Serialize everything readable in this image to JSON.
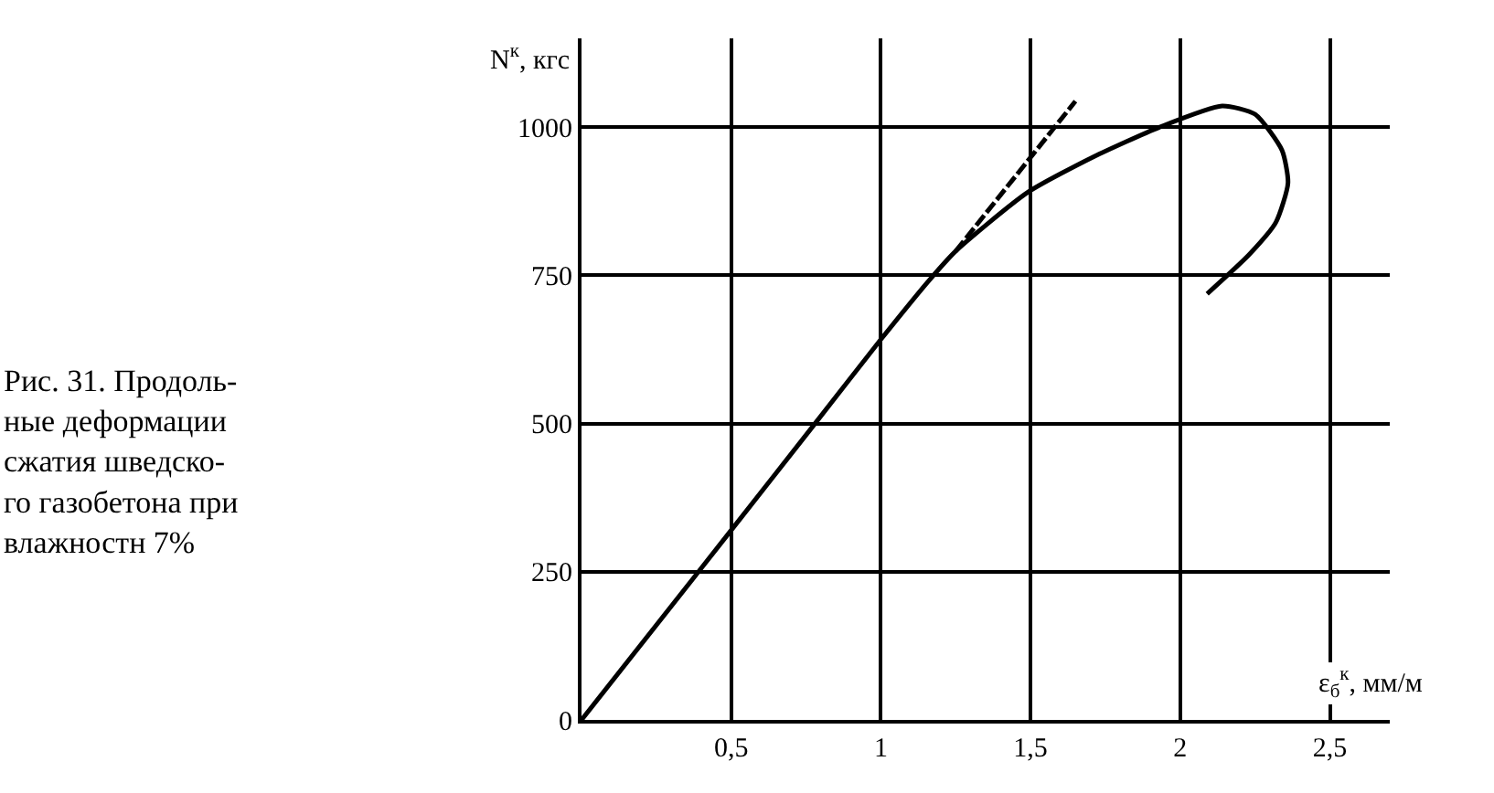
{
  "chart_data": {
    "type": "line",
    "xlabel": "ε$_{б}$$^{к}$, мм/м",
    "ylabel": "N$^{к}$, кгс",
    "annotations": [
      "Рис. 31. Продоль-\nные деформации\nсжатия шведско-\nго газобетона при\nвлажностн 7%"
    ],
    "xlim": [
      0,
      2.7
    ],
    "ylim": [
      0,
      1150
    ],
    "xticks": [
      {
        "value": 0.5,
        "label": "0,5"
      },
      1,
      {
        "value": 1.5,
        "label": "1,5"
      },
      2,
      {
        "value": 2.5,
        "label": "2,5"
      }
    ],
    "yticks": [
      0,
      250,
      500,
      750,
      1000
    ],
    "grid": true,
    "legend": false,
    "marker": "none",
    "series": [
      {
        "color": "#000000",
        "line_style": "solid",
        "x": [
          0,
          0.5,
          0.78,
          1.0,
          1.16,
          1.25,
          1.49,
          1.71,
          1.93,
          2.14,
          2.25,
          2.34,
          2.36,
          2.32,
          2.23,
          2.09
        ],
        "values": [
          0,
          320,
          500,
          642,
          741,
          791,
          890,
          950,
          1000,
          1036,
          1022,
          961,
          906,
          840,
          785,
          719
        ]
      },
      {
        "color": "#000000",
        "line_style": "dashed",
        "x": [
          1.25,
          1.65
        ],
        "values": [
          791,
          1044
        ]
      }
    ]
  }
}
